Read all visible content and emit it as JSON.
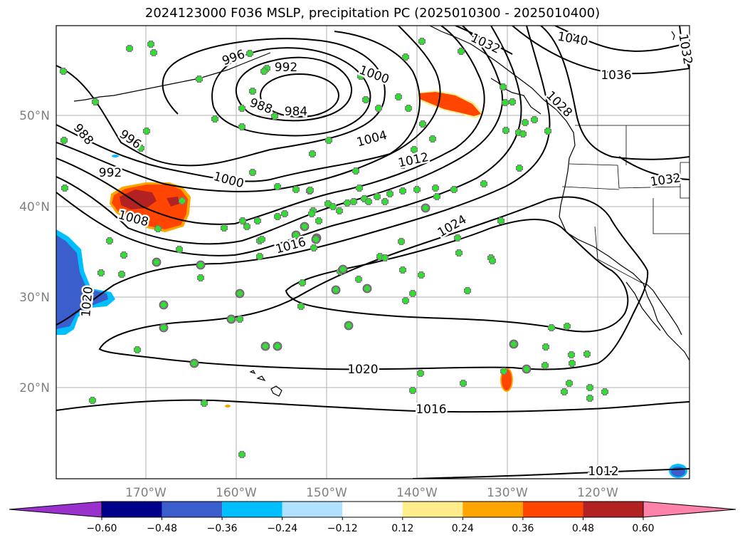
{
  "title": "2024123000 F036 MSLP, precipitation PC (2025010300 - 2025010400)",
  "lat_labels": [
    "50°N",
    "40°N",
    "30°N",
    "20°N"
  ],
  "lon_labels": [
    "170°W",
    "160°W",
    "150°W",
    "140°W",
    "130°W",
    "120°W"
  ],
  "colorbar": {
    "colors": [
      "#9932cc",
      "#00008b",
      "#3a5fcd",
      "#00bfff",
      "#b0e2ff",
      "#ffffff",
      "#ffec8b",
      "#ffa500",
      "#ff4500",
      "#b22222",
      "#ff82ab"
    ],
    "tick_labels": [
      "−0.60",
      "−0.48",
      "−0.36",
      "−0.24",
      "−0.12",
      "0.12",
      "0.24",
      "0.36",
      "0.48",
      "0.60"
    ]
  },
  "contour_labels": [
    "996",
    "992",
    "1000",
    "1032",
    "1040",
    "1032",
    "1036",
    "988",
    "984",
    "1028",
    "988",
    "996",
    "1004",
    "992",
    "1012",
    "1000",
    "1032",
    "1008",
    "1024",
    "1016",
    "1020",
    "1020",
    "1016",
    "1012"
  ]
}
